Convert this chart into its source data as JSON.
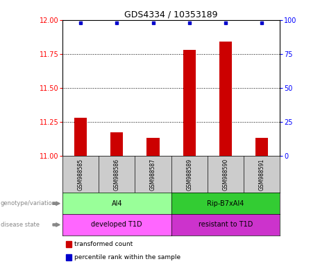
{
  "title": "GDS4334 / 10353189",
  "samples": [
    "GSM988585",
    "GSM988586",
    "GSM988587",
    "GSM988589",
    "GSM988590",
    "GSM988591"
  ],
  "transformed_counts": [
    11.28,
    11.17,
    11.13,
    11.78,
    11.84,
    11.13
  ],
  "percentile_ranks": [
    98,
    98,
    98,
    98,
    98,
    98
  ],
  "ylim_left": [
    11.0,
    12.0
  ],
  "ylim_right": [
    0,
    100
  ],
  "yticks_left": [
    11.0,
    11.25,
    11.5,
    11.75,
    12.0
  ],
  "yticks_right": [
    0,
    25,
    50,
    75,
    100
  ],
  "bar_color": "#cc0000",
  "dot_color": "#0000cc",
  "groups": [
    {
      "label": "AI4",
      "samples": [
        0,
        1,
        2
      ],
      "color": "#99ff99"
    },
    {
      "label": "Rip-B7xAI4",
      "samples": [
        3,
        4,
        5
      ],
      "color": "#33cc33"
    }
  ],
  "disease_states": [
    {
      "label": "developed T1D",
      "samples": [
        0,
        1,
        2
      ],
      "color": "#ff66ff"
    },
    {
      "label": "resistant to T1D",
      "samples": [
        3,
        4,
        5
      ],
      "color": "#cc33cc"
    }
  ],
  "genotype_label": "genotype/variation",
  "disease_label": "disease state",
  "legend_items": [
    {
      "label": "transformed count",
      "color": "#cc0000"
    },
    {
      "label": "percentile rank within the sample",
      "color": "#0000cc"
    }
  ],
  "grid_dotted_at": [
    11.25,
    11.5,
    11.75
  ],
  "sample_box_color": "#cccccc",
  "left_label_color": "#888888",
  "arrow_color": "#888888"
}
